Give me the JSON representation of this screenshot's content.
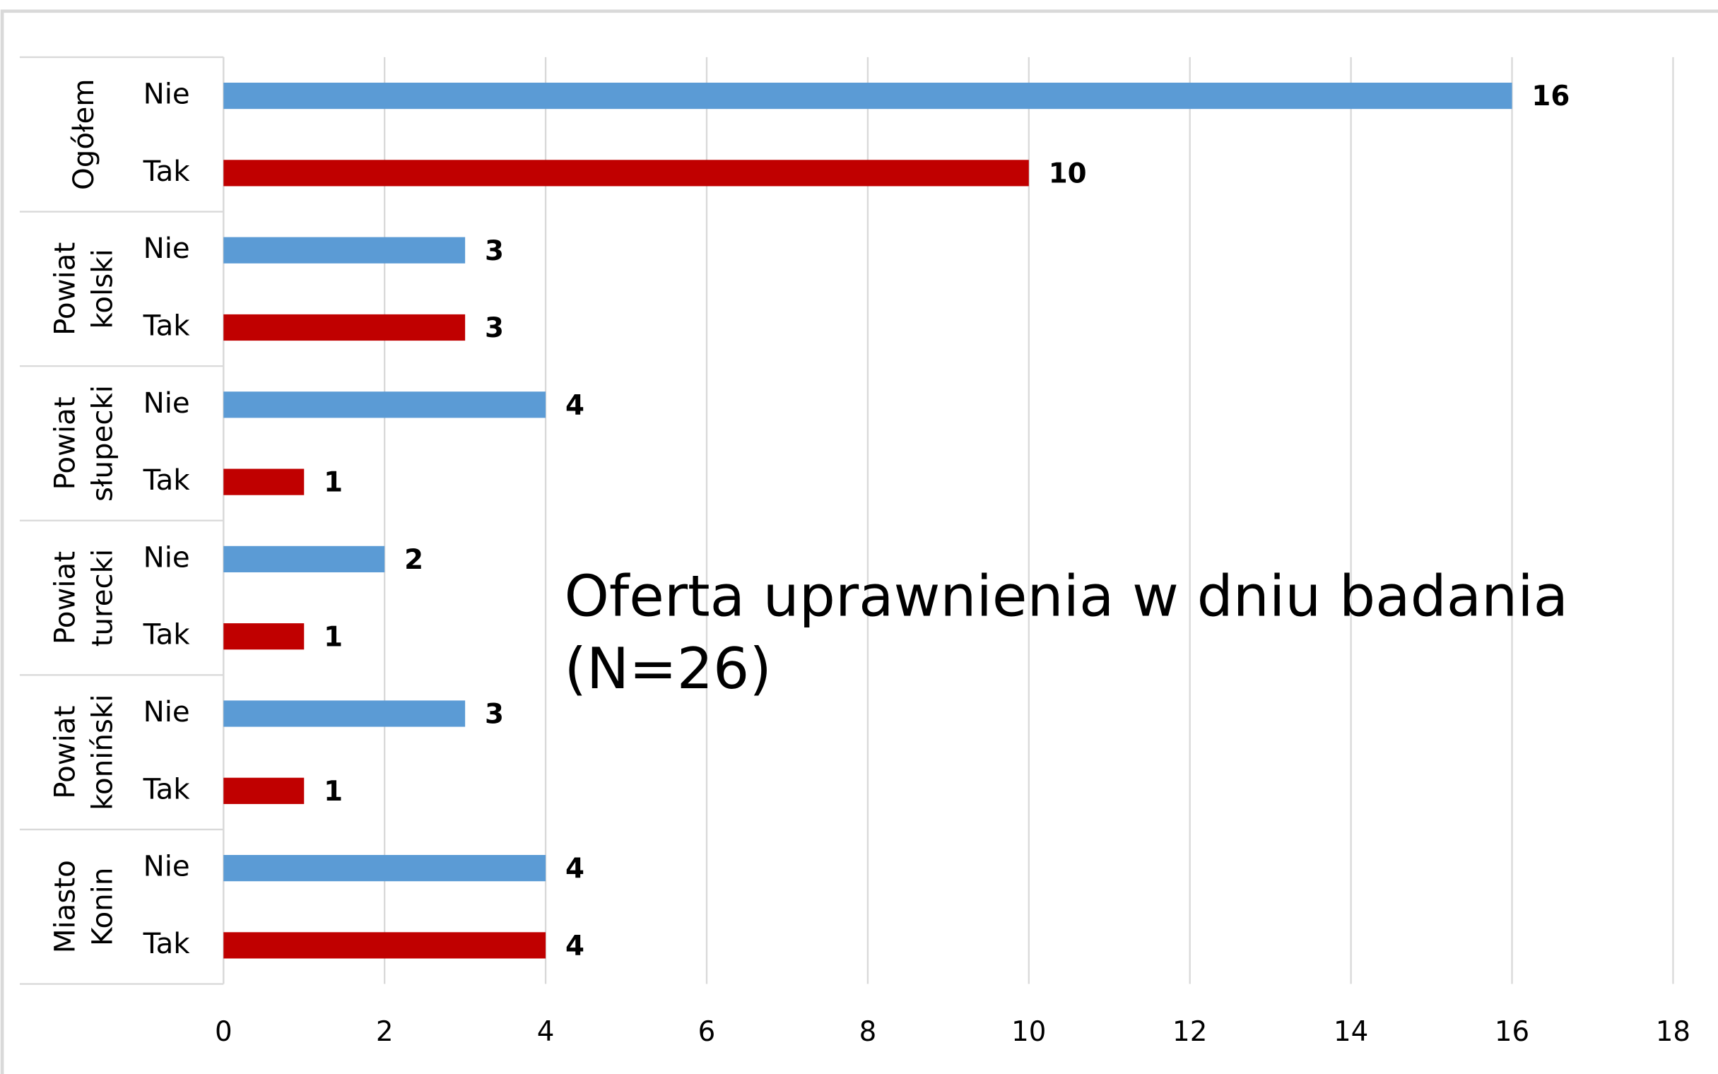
{
  "chart_data": {
    "type": "bar",
    "orientation": "horizontal",
    "title": "Oferta uprawnienia w dniu badania (N=26)",
    "groups": [
      [
        "Ogółem"
      ],
      [
        "Powiat",
        "kolski"
      ],
      [
        "Powiat",
        "słupecki"
      ],
      [
        "Powiat",
        "turecki"
      ],
      [
        "Powiat",
        "koniński"
      ],
      [
        "Miasto",
        "Konin"
      ]
    ],
    "series": [
      {
        "name": "Nie",
        "color": "#5b9bd5",
        "label_color": "#404040",
        "values": [
          16,
          3,
          4,
          2,
          3,
          4
        ]
      },
      {
        "name": "Tak",
        "color": "#c00000",
        "label_color": "#c00000",
        "values": [
          10,
          3,
          1,
          1,
          1,
          4
        ]
      }
    ],
    "xlim": [
      0,
      18
    ],
    "xticks": [
      0,
      2,
      4,
      6,
      8,
      10,
      12,
      14,
      16,
      18
    ],
    "grid": true
  }
}
